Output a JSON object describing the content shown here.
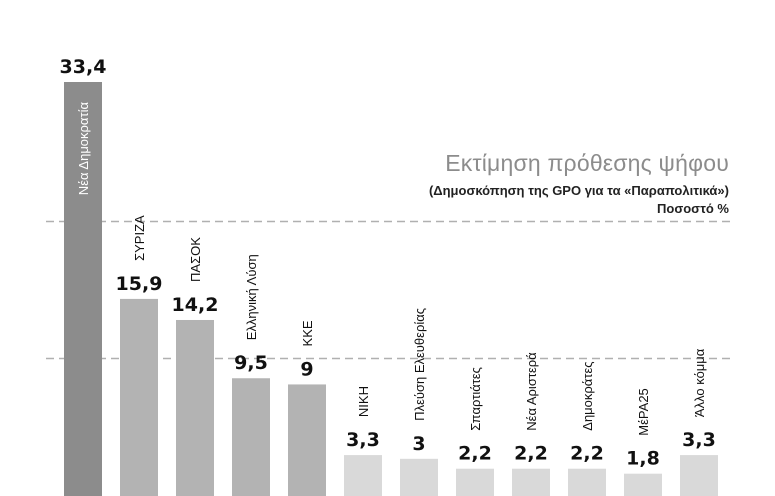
{
  "chart_data": {
    "type": "bar",
    "title": "Εκτίμηση πρόθεσης ψήφου",
    "subtitle": "(Δημοσκόπηση της GPO για τα «Παραπολιτικά»)",
    "unit_label": "Ποσοστό %",
    "categories": [
      "Νέα Δημοκρατία",
      "ΣΥΡΙΖΑ",
      "ΠΑΣΟΚ",
      "Ελληνική Λύση",
      "ΚΚΕ",
      "ΝΙΚΗ",
      "Πλεύση Ελευθερίας",
      "Σπαρτιάτες",
      "Νέα Αριστερά",
      "Δημοκράτες",
      "ΜέΡΑ25",
      "Άλλο κόμμα"
    ],
    "values": [
      33.4,
      15.9,
      14.2,
      9.5,
      9,
      3.3,
      3,
      2.2,
      2.2,
      2.2,
      1.8,
      3.3
    ],
    "value_labels": [
      "33,4",
      "15,9",
      "14,2",
      "9,5",
      "9",
      "3,3",
      "3",
      "2,2",
      "2,2",
      "2,2",
      "1,8",
      "3,3"
    ],
    "bar_colors": [
      "#8c8c8c",
      "#b3b3b3",
      "#b3b3b3",
      "#b3b3b3",
      "#b3b3b3",
      "#d9d9d9",
      "#d9d9d9",
      "#d9d9d9",
      "#d9d9d9",
      "#d9d9d9",
      "#d9d9d9",
      "#d9d9d9"
    ],
    "gridline_values": [
      11.1,
      22.2
    ],
    "grid_color": "#b0b0b0",
    "ylim": [
      0,
      33.4
    ],
    "legend": "none"
  }
}
